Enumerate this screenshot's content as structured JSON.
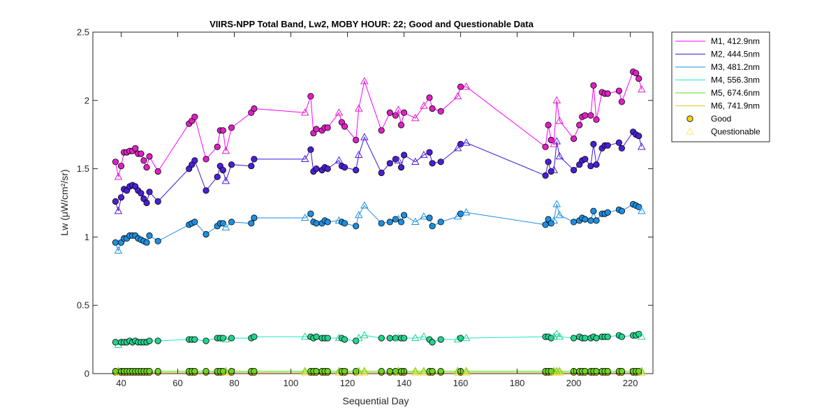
{
  "chart_data": {
    "type": "line",
    "title": "VIIRS-NPP Total Band,  Lw2, MOBY HOUR: 22;  Good and Questionable Data",
    "xlabel": "Sequential Day",
    "ylabel": "Lw (μW/cm²/sr)",
    "xlim": [
      30,
      228
    ],
    "ylim": [
      0,
      2.5
    ],
    "xticks": [
      40,
      60,
      80,
      100,
      120,
      140,
      160,
      180,
      200,
      220
    ],
    "yticks": [
      0,
      0.5,
      1,
      1.5,
      2,
      2.5
    ],
    "ytick_labels": [
      "0",
      "0.5",
      "1",
      "1.5",
      "2",
      "2.5"
    ],
    "grid": false,
    "legend_position": "outside-top-right",
    "x": [
      38,
      39,
      40,
      41,
      42,
      43,
      44,
      45,
      46,
      47,
      48,
      49,
      50,
      53,
      64,
      65,
      66,
      70,
      74,
      75,
      76,
      77,
      79,
      86,
      87,
      105,
      107,
      108,
      109,
      111,
      112,
      113,
      117,
      118,
      119,
      123,
      124,
      126,
      132,
      135,
      137,
      138,
      139,
      140,
      144,
      147,
      149,
      150,
      153,
      159,
      160,
      162,
      190,
      191,
      192,
      193,
      194,
      195,
      200,
      202,
      203,
      204,
      206,
      207,
      208,
      210,
      211,
      212,
      216,
      217,
      221,
      222,
      223,
      224
    ],
    "quality": [
      "G",
      "Q",
      "G",
      "G",
      "G",
      "G",
      "G",
      "G",
      "G",
      "G",
      "G",
      "G",
      "G",
      "G",
      "G",
      "G",
      "G",
      "G",
      "G",
      "G",
      "G",
      "Q",
      "G",
      "G",
      "G",
      "Q",
      "G",
      "G",
      "G",
      "G",
      "G",
      "G",
      "Q",
      "G",
      "G",
      "G",
      "Q",
      "Q",
      "G",
      "G",
      "G",
      "Q",
      "G",
      "G",
      "Q",
      "Q",
      "G",
      "G",
      "G",
      "Q",
      "G",
      "Q",
      "G",
      "G",
      "G",
      "Q",
      "Q",
      "Q",
      "G",
      "G",
      "G",
      "G",
      "G",
      "G",
      "G",
      "G",
      "G",
      "G",
      "G",
      "G",
      "G",
      "G",
      "G",
      "Q"
    ],
    "series": [
      {
        "name": "M1, 412.9nm",
        "color": "#ff00ff",
        "marker_color": "#e01fc4",
        "values": [
          1.55,
          1.44,
          1.52,
          1.62,
          1.62,
          1.63,
          1.63,
          1.65,
          1.61,
          1.61,
          1.56,
          1.51,
          1.59,
          1.48,
          1.83,
          1.85,
          1.88,
          1.57,
          1.66,
          1.78,
          1.78,
          1.63,
          1.8,
          1.91,
          1.94,
          1.91,
          2.03,
          1.76,
          1.79,
          1.78,
          1.8,
          1.8,
          1.91,
          1.84,
          1.81,
          1.71,
          1.94,
          2.14,
          1.78,
          1.91,
          1.89,
          1.93,
          1.82,
          1.91,
          1.87,
          1.96,
          2.02,
          1.94,
          1.92,
          2.03,
          2.1,
          2.1,
          1.66,
          1.82,
          1.71,
          1.68,
          2.0,
          1.85,
          1.72,
          1.82,
          1.88,
          1.89,
          1.89,
          2.11,
          1.86,
          2.06,
          2.05,
          2.05,
          2.07,
          1.99,
          2.21,
          2.2,
          2.16,
          2.08
        ]
      },
      {
        "name": "M2, 444.5nm",
        "color": "#3d14d9",
        "marker_color": "#4b1fd6",
        "values": [
          1.26,
          1.19,
          1.29,
          1.35,
          1.34,
          1.37,
          1.38,
          1.37,
          1.34,
          1.32,
          1.28,
          1.25,
          1.33,
          1.26,
          1.5,
          1.53,
          1.56,
          1.34,
          1.44,
          1.52,
          1.49,
          1.41,
          1.53,
          1.52,
          1.57,
          1.57,
          1.64,
          1.48,
          1.5,
          1.49,
          1.51,
          1.5,
          1.56,
          1.52,
          1.51,
          1.49,
          1.6,
          1.73,
          1.47,
          1.54,
          1.57,
          1.56,
          1.51,
          1.6,
          1.55,
          1.6,
          1.62,
          1.54,
          1.55,
          1.65,
          1.68,
          1.69,
          1.45,
          1.55,
          1.48,
          1.49,
          1.7,
          1.59,
          1.49,
          1.53,
          1.56,
          1.57,
          1.52,
          1.68,
          1.53,
          1.65,
          1.67,
          1.67,
          1.69,
          1.65,
          1.77,
          1.75,
          1.74,
          1.66
        ]
      },
      {
        "name": "M3, 481.2nm",
        "color": "#1e8ee8",
        "marker_color": "#1e8fe0",
        "values": [
          0.96,
          0.9,
          0.96,
          0.99,
          0.99,
          1.01,
          1.01,
          1.01,
          0.99,
          0.98,
          0.97,
          0.96,
          1.01,
          0.97,
          1.09,
          1.1,
          1.11,
          1.02,
          1.08,
          1.1,
          1.1,
          1.07,
          1.11,
          1.1,
          1.14,
          1.14,
          1.17,
          1.11,
          1.1,
          1.1,
          1.12,
          1.11,
          1.12,
          1.11,
          1.1,
          1.08,
          1.16,
          1.23,
          1.1,
          1.11,
          1.13,
          1.13,
          1.11,
          1.16,
          1.11,
          1.15,
          1.14,
          1.08,
          1.11,
          1.15,
          1.17,
          1.18,
          1.09,
          1.13,
          1.1,
          1.12,
          1.24,
          1.16,
          1.11,
          1.12,
          1.14,
          1.13,
          1.12,
          1.19,
          1.12,
          1.17,
          1.17,
          1.18,
          1.2,
          1.19,
          1.24,
          1.23,
          1.22,
          1.19
        ]
      },
      {
        "name": "M4, 556.3nm",
        "color": "#1ee6c6",
        "marker_color": "#22d48e",
        "values": [
          0.23,
          0.21,
          0.23,
          0.23,
          0.23,
          0.24,
          0.23,
          0.24,
          0.23,
          0.23,
          0.23,
          0.23,
          0.24,
          0.24,
          0.25,
          0.25,
          0.25,
          0.24,
          0.26,
          0.26,
          0.26,
          0.25,
          0.26,
          0.26,
          0.27,
          0.27,
          0.27,
          0.26,
          0.27,
          0.26,
          0.26,
          0.26,
          0.26,
          0.26,
          0.25,
          0.24,
          0.26,
          0.28,
          0.26,
          0.26,
          0.26,
          0.26,
          0.26,
          0.26,
          0.26,
          0.27,
          0.25,
          0.23,
          0.25,
          0.25,
          0.26,
          0.26,
          0.27,
          0.27,
          0.26,
          0.27,
          0.29,
          0.27,
          0.26,
          0.27,
          0.26,
          0.26,
          0.26,
          0.27,
          0.26,
          0.27,
          0.27,
          0.27,
          0.28,
          0.27,
          0.28,
          0.28,
          0.29,
          0.27
        ]
      },
      {
        "name": "M5, 674.6nm",
        "color": "#5dde1b",
        "marker_color": "#6fd422",
        "values": [
          0.018,
          0.018,
          0.018,
          0.018,
          0.018,
          0.018,
          0.018,
          0.018,
          0.018,
          0.018,
          0.018,
          0.018,
          0.018,
          0.018,
          0.018,
          0.018,
          0.018,
          0.018,
          0.018,
          0.018,
          0.018,
          0.018,
          0.018,
          0.018,
          0.018,
          0.018,
          0.018,
          0.018,
          0.018,
          0.018,
          0.018,
          0.018,
          0.018,
          0.018,
          0.018,
          0.018,
          0.018,
          0.018,
          0.018,
          0.018,
          0.018,
          0.018,
          0.018,
          0.018,
          0.018,
          0.018,
          0.018,
          0.018,
          0.018,
          0.018,
          0.018,
          0.018,
          0.018,
          0.018,
          0.018,
          0.018,
          0.018,
          0.018,
          0.018,
          0.018,
          0.018,
          0.018,
          0.018,
          0.018,
          0.018,
          0.018,
          0.018,
          0.018,
          0.018,
          0.018,
          0.018,
          0.018,
          0.018,
          0.018
        ]
      },
      {
        "name": "M6, 741.9nm",
        "color": "#e6c81a",
        "marker_color": "#f2cc12",
        "values": [
          0.008,
          0.008,
          0.008,
          0.008,
          0.008,
          0.008,
          0.008,
          0.008,
          0.008,
          0.008,
          0.008,
          0.008,
          0.008,
          0.008,
          0.008,
          0.008,
          0.008,
          0.008,
          0.008,
          0.008,
          0.008,
          0.008,
          0.008,
          0.008,
          0.008,
          0.008,
          0.008,
          0.008,
          0.008,
          0.008,
          0.008,
          0.008,
          0.008,
          0.008,
          0.008,
          0.008,
          0.008,
          0.008,
          0.008,
          0.008,
          0.008,
          0.008,
          0.008,
          0.008,
          0.008,
          0.008,
          0.008,
          0.008,
          0.008,
          0.008,
          0.008,
          0.008,
          0.008,
          0.008,
          0.008,
          0.008,
          0.008,
          0.008,
          0.008,
          0.008,
          0.008,
          0.008,
          0.008,
          0.008,
          0.008,
          0.008,
          0.008,
          0.008,
          0.008,
          0.008,
          0.008,
          0.008,
          0.008,
          0.008
        ]
      }
    ],
    "legend": {
      "entries": [
        "M1, 412.9nm",
        "M2, 444.5nm",
        "M3, 481.2nm",
        "M4, 556.3nm",
        "M5, 674.6nm",
        "M6, 741.9nm",
        "Good",
        "Questionable"
      ],
      "good_marker_color": "#ffd21a",
      "questionable_marker_color": "#ffe566"
    }
  }
}
